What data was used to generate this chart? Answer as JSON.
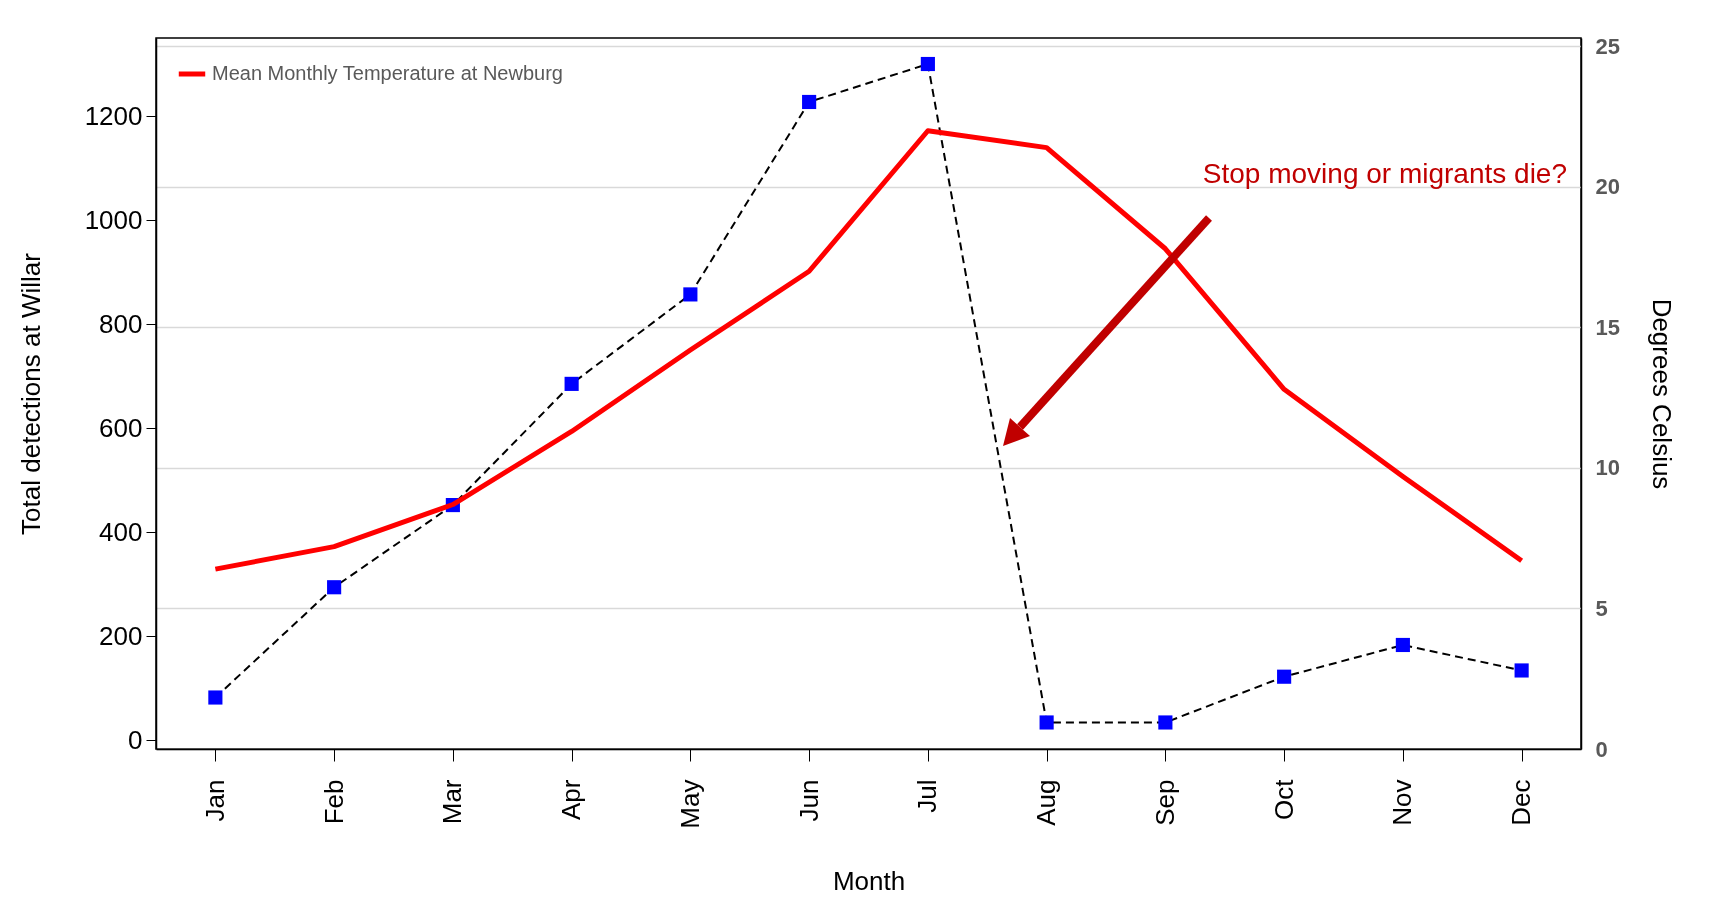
{
  "chart_data": {
    "type": "line",
    "xlabel": "Month",
    "ylabel": "Total detections at Willar",
    "y2label": "Degrees Celsius",
    "categories": [
      "Jan",
      "Feb",
      "Mar",
      "Apr",
      "May",
      "Jun",
      "Jul",
      "Aug",
      "Sep",
      "Oct",
      "Nov",
      "Dec"
    ],
    "series": [
      {
        "color": "#0000ff",
        "marker": "square",
        "line_style": "dashed",
        "values": [
          82,
          294,
          452,
          685,
          857,
          1227,
          1300,
          34,
          34,
          122,
          183,
          134
        ]
      },
      {
        "name": "Mean Monthly Temperature at Newburg",
        "color": "#ff0000",
        "axis": "y2",
        "marker": "none",
        "line_style": "solid",
        "values": [
          6.4,
          7.2,
          8.7,
          11.3,
          14.2,
          17.0,
          22.0,
          21.4,
          17.8,
          12.8,
          9.7,
          6.7
        ]
      }
    ],
    "ylim": [
      -17,
      1350
    ],
    "yticks": [
      0,
      200,
      400,
      600,
      800,
      1000,
      1200
    ],
    "y2lim": [
      0,
      25.3
    ],
    "y2ticks": [
      0,
      5,
      10,
      15,
      20,
      25
    ],
    "grid": true,
    "legend": "top left",
    "annotations": [
      "Stop moving or migrants die?"
    ]
  }
}
